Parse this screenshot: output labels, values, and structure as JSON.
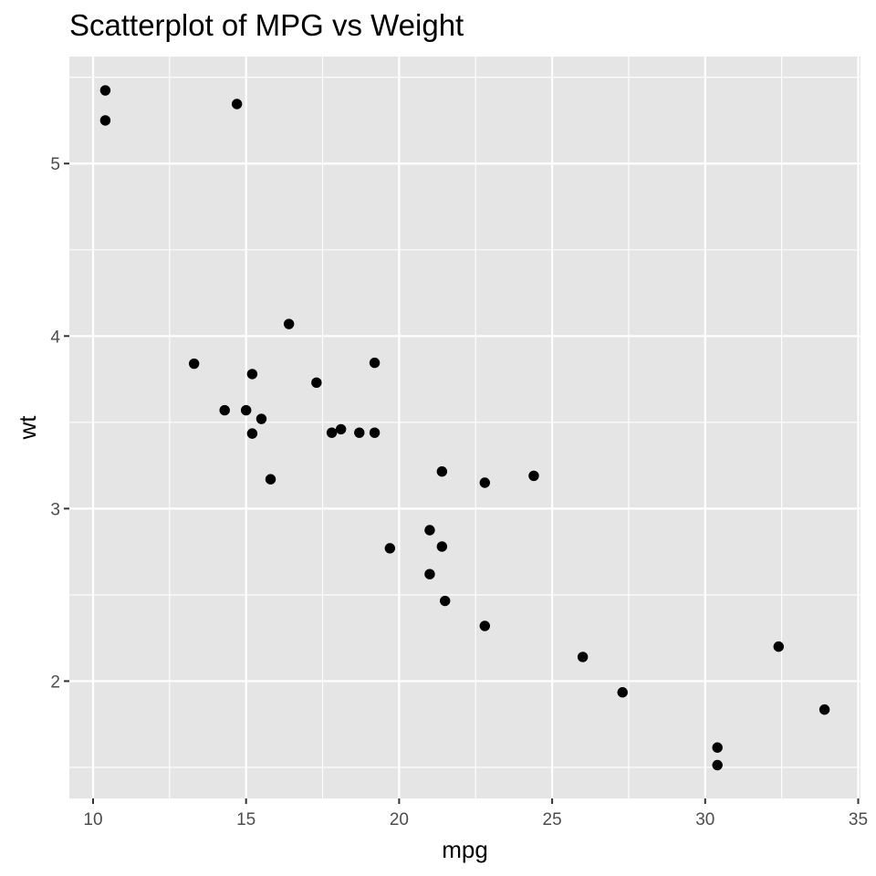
{
  "chart_data": {
    "type": "scatter",
    "title": "Scatterplot of MPG vs Weight",
    "xlabel": "mpg",
    "ylabel": "wt",
    "xlim": [
      9.225,
      35.075
    ],
    "ylim": [
      1.32,
      5.62
    ],
    "x_ticks": [
      10,
      15,
      20,
      25,
      30,
      35
    ],
    "y_ticks": [
      2,
      3,
      4,
      5
    ],
    "x_tick_labels": [
      "10",
      "15",
      "20",
      "25",
      "30",
      "35"
    ],
    "y_tick_labels": [
      "2",
      "3",
      "4",
      "5"
    ],
    "x_minor_ticks": [
      12.5,
      17.5,
      22.5,
      27.5,
      32.5
    ],
    "y_minor_ticks": [
      1.5,
      2.5,
      3.5,
      4.5,
      5.5
    ],
    "grid": true,
    "legend": "none",
    "colors": {
      "panel_background": "#e5e5e5",
      "grid_line": "#ffffff",
      "point": "#000000",
      "tick_mark": "#333333"
    },
    "points": [
      {
        "x": 21.0,
        "y": 2.62
      },
      {
        "x": 21.0,
        "y": 2.875
      },
      {
        "x": 22.8,
        "y": 2.32
      },
      {
        "x": 21.4,
        "y": 3.215
      },
      {
        "x": 18.7,
        "y": 3.44
      },
      {
        "x": 18.1,
        "y": 3.46
      },
      {
        "x": 14.3,
        "y": 3.57
      },
      {
        "x": 24.4,
        "y": 3.19
      },
      {
        "x": 22.8,
        "y": 3.15
      },
      {
        "x": 19.2,
        "y": 3.44
      },
      {
        "x": 17.8,
        "y": 3.44
      },
      {
        "x": 16.4,
        "y": 4.07
      },
      {
        "x": 17.3,
        "y": 3.73
      },
      {
        "x": 15.2,
        "y": 3.78
      },
      {
        "x": 10.4,
        "y": 5.25
      },
      {
        "x": 10.4,
        "y": 5.424
      },
      {
        "x": 14.7,
        "y": 5.345
      },
      {
        "x": 32.4,
        "y": 2.2
      },
      {
        "x": 30.4,
        "y": 1.615
      },
      {
        "x": 33.9,
        "y": 1.835
      },
      {
        "x": 21.5,
        "y": 2.465
      },
      {
        "x": 15.5,
        "y": 3.52
      },
      {
        "x": 15.2,
        "y": 3.435
      },
      {
        "x": 13.3,
        "y": 3.84
      },
      {
        "x": 19.2,
        "y": 3.845
      },
      {
        "x": 27.3,
        "y": 1.935
      },
      {
        "x": 26.0,
        "y": 2.14
      },
      {
        "x": 30.4,
        "y": 1.513
      },
      {
        "x": 15.8,
        "y": 3.17
      },
      {
        "x": 19.7,
        "y": 2.77
      },
      {
        "x": 15.0,
        "y": 3.57
      },
      {
        "x": 21.4,
        "y": 2.78
      }
    ]
  }
}
